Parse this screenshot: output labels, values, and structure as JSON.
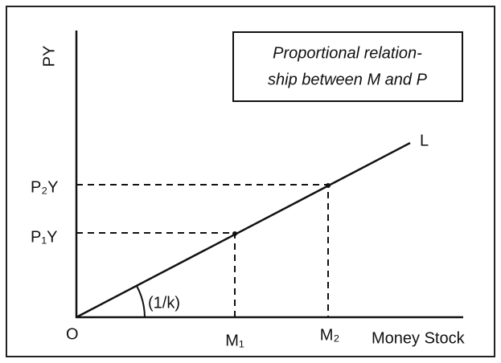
{
  "axes": {
    "y_label": "PY",
    "x_label": "Money Stock",
    "origin": "O"
  },
  "legend_box": {
    "lines": [
      "Proportional relation-",
      "ship between M and P"
    ]
  },
  "curve_label": "L",
  "angle_label": "(1/k)",
  "y_levels": [
    "P₂Y",
    "P₁Y"
  ],
  "x_levels": [
    "M₁",
    "M₂"
  ]
}
